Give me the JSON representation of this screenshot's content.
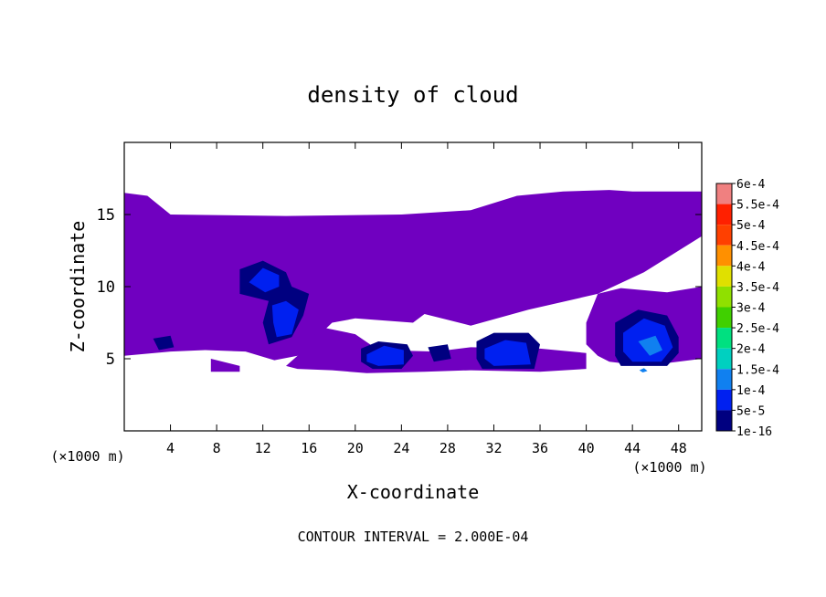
{
  "chart_data": {
    "type": "heatmap",
    "title": "density of cloud",
    "xlabel": "X-coordinate",
    "ylabel": "Z-coordinate",
    "x_unit": "(×1000 m)",
    "y_unit": "(×1000 m)",
    "xlim": [
      0,
      50
    ],
    "ylim": [
      0,
      20
    ],
    "x_ticks": [
      4,
      8,
      12,
      16,
      20,
      24,
      28,
      32,
      36,
      40,
      44,
      48
    ],
    "y_ticks": [
      5,
      10,
      15
    ],
    "grid": false,
    "legend_placement": "right",
    "footer": "CONTOUR INTERVAL = 2.000E-04",
    "colorbar": {
      "labels": [
        "6e-4",
        "5.5e-4",
        "5e-4",
        "4.5e-4",
        "4e-4",
        "3.5e-4",
        "3e-4",
        "2.5e-4",
        "2e-4",
        "1.5e-4",
        "1e-4",
        "5e-5",
        "1e-16"
      ],
      "colors": [
        "#f08080",
        "#ff2000",
        "#ff4000",
        "#ff9000",
        "#e0e000",
        "#90e000",
        "#40d000",
        "#00e080",
        "#00d0c0",
        "#1080f0",
        "#0020f0",
        "#000080",
        "#7000c0"
      ]
    },
    "regions": [
      {
        "level": "1e-16",
        "points": [
          [
            0,
            16.5
          ],
          [
            2,
            16.3
          ],
          [
            4,
            15
          ],
          [
            14,
            14.9
          ],
          [
            24,
            15
          ],
          [
            30,
            15.3
          ],
          [
            34,
            16.3
          ],
          [
            38,
            16.6
          ],
          [
            42,
            16.7
          ],
          [
            44,
            16.6
          ],
          [
            50,
            16.6
          ],
          [
            50,
            13.5
          ],
          [
            45,
            11
          ],
          [
            41,
            9.5
          ],
          [
            35,
            8.4
          ],
          [
            30,
            7.3
          ],
          [
            26,
            8.1
          ],
          [
            25,
            7.5
          ],
          [
            20,
            7.8
          ],
          [
            18,
            7.5
          ],
          [
            15,
            5.2
          ],
          [
            13,
            4.9
          ],
          [
            10.5,
            5.5
          ],
          [
            7,
            5.6
          ],
          [
            4,
            5.5
          ],
          [
            0,
            5.2
          ]
        ]
      },
      {
        "level": "1e-16",
        "points": [
          [
            41,
            9.5
          ],
          [
            43,
            9.9
          ],
          [
            47,
            9.6
          ],
          [
            50,
            10
          ],
          [
            50,
            5
          ],
          [
            47,
            4.7
          ],
          [
            44,
            4.6
          ],
          [
            42,
            4.8
          ],
          [
            41,
            5.2
          ],
          [
            40,
            6
          ],
          [
            40,
            7.5
          ]
        ]
      },
      {
        "level": "1e-16",
        "points": [
          [
            17,
            7.2
          ],
          [
            20,
            6.7
          ],
          [
            22,
            5.6
          ],
          [
            27,
            5.5
          ],
          [
            30,
            5.8
          ],
          [
            36,
            5.7
          ],
          [
            40,
            5.4
          ],
          [
            40,
            4.3
          ],
          [
            36,
            4.1
          ],
          [
            30,
            4.2
          ],
          [
            26,
            4.1
          ],
          [
            21,
            4
          ],
          [
            18,
            4.2
          ],
          [
            15,
            4.3
          ],
          [
            14,
            4.5
          ],
          [
            15,
            5.2
          ]
        ]
      },
      {
        "level": "1e-16",
        "points": [
          [
            7.5,
            5
          ],
          [
            10,
            4.5
          ],
          [
            10,
            4.1
          ],
          [
            7.5,
            4.1
          ]
        ]
      },
      {
        "level": "5e-5",
        "points": [
          [
            10,
            11.2
          ],
          [
            12,
            11.8
          ],
          [
            14,
            11
          ],
          [
            14.5,
            10
          ],
          [
            16,
            9.5
          ],
          [
            15.5,
            8
          ],
          [
            14.5,
            6.5
          ],
          [
            12.5,
            6
          ],
          [
            12,
            7.5
          ],
          [
            12.5,
            9
          ],
          [
            10,
            9.5
          ]
        ]
      },
      {
        "level": "5e-5",
        "points": [
          [
            20.5,
            5.7
          ],
          [
            22,
            6.2
          ],
          [
            24.5,
            6
          ],
          [
            25,
            5.2
          ],
          [
            24,
            4.3
          ],
          [
            21.5,
            4.3
          ],
          [
            20.5,
            4.8
          ]
        ]
      },
      {
        "level": "5e-5",
        "points": [
          [
            30.5,
            6.2
          ],
          [
            32,
            6.8
          ],
          [
            35,
            6.8
          ],
          [
            36,
            6
          ],
          [
            35.5,
            4.3
          ],
          [
            31,
            4.3
          ],
          [
            30.5,
            5
          ]
        ]
      },
      {
        "level": "5e-5",
        "points": [
          [
            42.5,
            7.5
          ],
          [
            44.5,
            8.4
          ],
          [
            47,
            8
          ],
          [
            48,
            6.5
          ],
          [
            48,
            5.4
          ],
          [
            47,
            4.5
          ],
          [
            43,
            4.5
          ],
          [
            42.5,
            5.2
          ]
        ]
      },
      {
        "level": "5e-5",
        "points": [
          [
            2.5,
            6.4
          ],
          [
            4,
            6.6
          ],
          [
            4.3,
            5.8
          ],
          [
            3,
            5.6
          ]
        ]
      },
      {
        "level": "5e-5",
        "points": [
          [
            26.3,
            5.8
          ],
          [
            28,
            6
          ],
          [
            28.3,
            5
          ],
          [
            26.8,
            4.8
          ]
        ]
      },
      {
        "level": "1e-4",
        "points": [
          [
            10.8,
            10.3
          ],
          [
            12,
            11.3
          ],
          [
            13.4,
            10.8
          ],
          [
            13.4,
            10
          ],
          [
            12.2,
            9.6
          ]
        ]
      },
      {
        "level": "1e-4",
        "points": [
          [
            12.8,
            8.7
          ],
          [
            14,
            9
          ],
          [
            15.1,
            8.4
          ],
          [
            14.5,
            6.7
          ],
          [
            13.2,
            6.5
          ],
          [
            12.9,
            7.5
          ]
        ]
      },
      {
        "level": "1e-4",
        "points": [
          [
            21,
            5.3
          ],
          [
            22.5,
            5.9
          ],
          [
            24.2,
            5.6
          ],
          [
            24.2,
            4.6
          ],
          [
            22,
            4.5
          ],
          [
            21,
            4.8
          ]
        ]
      },
      {
        "level": "1e-4",
        "points": [
          [
            31.2,
            5.7
          ],
          [
            33,
            6.3
          ],
          [
            34.8,
            6.1
          ],
          [
            35.2,
            4.6
          ],
          [
            32,
            4.5
          ],
          [
            31.2,
            5
          ]
        ]
      },
      {
        "level": "1e-4",
        "points": [
          [
            43.2,
            6.8
          ],
          [
            45,
            7.8
          ],
          [
            46.8,
            7.3
          ],
          [
            47.5,
            5.8
          ],
          [
            46.5,
            4.8
          ],
          [
            44,
            4.8
          ],
          [
            43.2,
            5.5
          ]
        ]
      },
      {
        "level": "1.5e-4",
        "points": [
          [
            44.5,
            6.2
          ],
          [
            46,
            6.6
          ],
          [
            46.6,
            5.6
          ],
          [
            45.5,
            5.2
          ]
        ]
      },
      {
        "level": "1.5e-4",
        "points": [
          [
            44.6,
            4.2
          ],
          [
            45,
            4.35
          ],
          [
            45.3,
            4.15
          ],
          [
            44.9,
            4.05
          ]
        ]
      }
    ]
  }
}
